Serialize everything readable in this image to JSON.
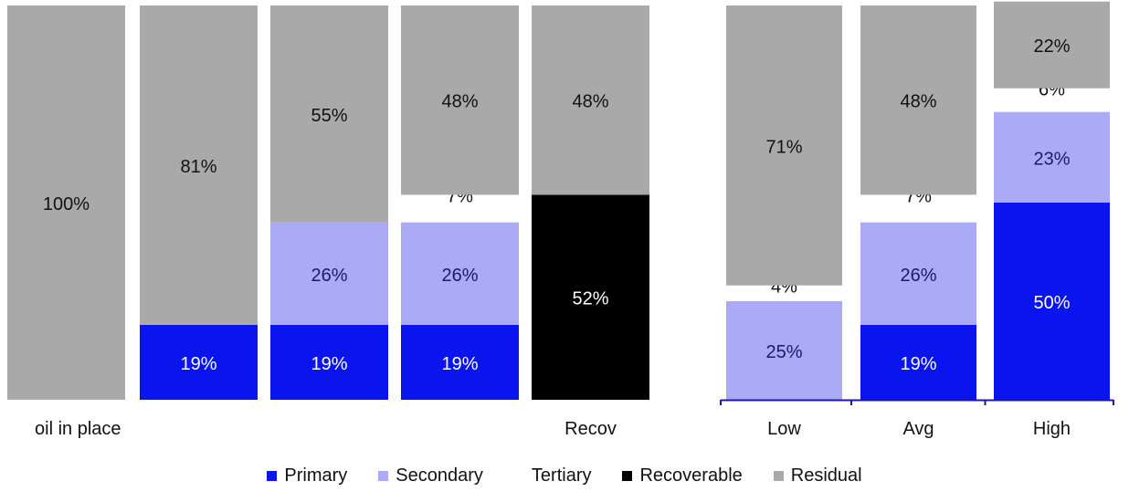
{
  "chart_data": [
    {
      "type": "bar",
      "stacked": true,
      "categories": [
        "oil in place",
        "",
        "",
        "",
        "Recov"
      ],
      "series": [
        {
          "name": "Primary",
          "color": "#0a14ee",
          "values": [
            0,
            19,
            19,
            19,
            0
          ]
        },
        {
          "name": "Secondary",
          "color": "#aaaaf6",
          "values": [
            0,
            0,
            26,
            26,
            0
          ]
        },
        {
          "name": "Tertiary",
          "color": "#ffffff",
          "values": [
            0,
            0,
            0,
            7,
            0
          ]
        },
        {
          "name": "Recoverable",
          "color": "#000000",
          "values": [
            0,
            0,
            0,
            0,
            52
          ]
        },
        {
          "name": "Residual",
          "color": "#a9a9a9",
          "values": [
            100,
            81,
            55,
            48,
            48
          ]
        }
      ],
      "data_labels": [
        [
          "",
          "",
          "",
          "",
          "100%"
        ],
        [
          "19%",
          "",
          "",
          "",
          "81%"
        ],
        [
          "19%",
          "26%",
          "",
          "",
          "55%"
        ],
        [
          "19%",
          "26%",
          "7%",
          "",
          "48%"
        ],
        [
          "",
          "",
          "",
          "52%",
          "48%"
        ]
      ],
      "ylim": [
        0,
        100
      ]
    },
    {
      "type": "bar",
      "stacked": true,
      "categories": [
        "Low",
        "Avg",
        "High"
      ],
      "series": [
        {
          "name": "Primary",
          "color": "#0a14ee",
          "values": [
            0,
            19,
            50
          ]
        },
        {
          "name": "Secondary",
          "color": "#aaaaf6",
          "values": [
            25,
            26,
            23
          ]
        },
        {
          "name": "Tertiary",
          "color": "#ffffff",
          "values": [
            4,
            7,
            6
          ]
        },
        {
          "name": "Residual",
          "color": "#a9a9a9",
          "values": [
            71,
            48,
            22
          ]
        }
      ],
      "data_labels": [
        [
          "",
          "25%",
          "4%",
          "71%"
        ],
        [
          "19%",
          "26%",
          "7%",
          "48%"
        ],
        [
          "50%",
          "23%",
          "6%",
          "22%"
        ]
      ],
      "ylim": [
        0,
        100
      ]
    }
  ],
  "legend": [
    {
      "label": "Primary",
      "color": "#0a14ee"
    },
    {
      "label": "Secondary",
      "color": "#aaaaf6"
    },
    {
      "label": "Tertiary",
      "color": "#ffffff"
    },
    {
      "label": "Recoverable",
      "color": "#000000"
    },
    {
      "label": "Residual",
      "color": "#a9a9a9"
    }
  ]
}
